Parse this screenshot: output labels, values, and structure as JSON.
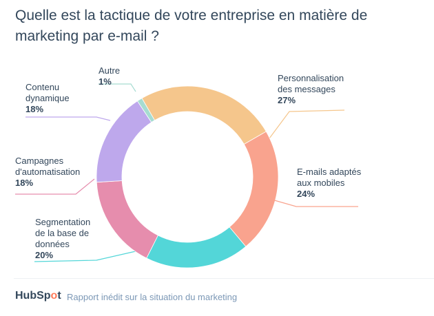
{
  "chart_data": {
    "type": "pie",
    "title": "Quelle est la tactique de votre entreprise en matière de marketing par e-mail ?",
    "slices": [
      {
        "label_lines": [
          "Personnalisation",
          "des messages"
        ],
        "value": 27,
        "value_label": "27%",
        "color": "#f5c68c"
      },
      {
        "label_lines": [
          "E-mails adaptés",
          "aux mobiles"
        ],
        "value": 24,
        "value_label": "24%",
        "color": "#f9a38e"
      },
      {
        "label_lines": [
          "Segmentation",
          "de la base de",
          "données"
        ],
        "value": 20,
        "value_label": "20%",
        "color": "#53d6d8"
      },
      {
        "label_lines": [
          "Campagnes",
          "d'automatisation"
        ],
        "value": 18,
        "value_label": "18%",
        "color": "#e68dad"
      },
      {
        "label_lines": [
          "Contenu",
          "dynamique"
        ],
        "value": 18,
        "value_label": "18%",
        "color": "#bea8ec"
      },
      {
        "label_lines": [
          "Autre"
        ],
        "value": 1,
        "value_label": "1%",
        "color": "#a6dcd1"
      }
    ],
    "hole": "donut"
  },
  "footer": {
    "logo": "HubSpot",
    "source": "Rapport inédit sur la situation du marketing"
  }
}
